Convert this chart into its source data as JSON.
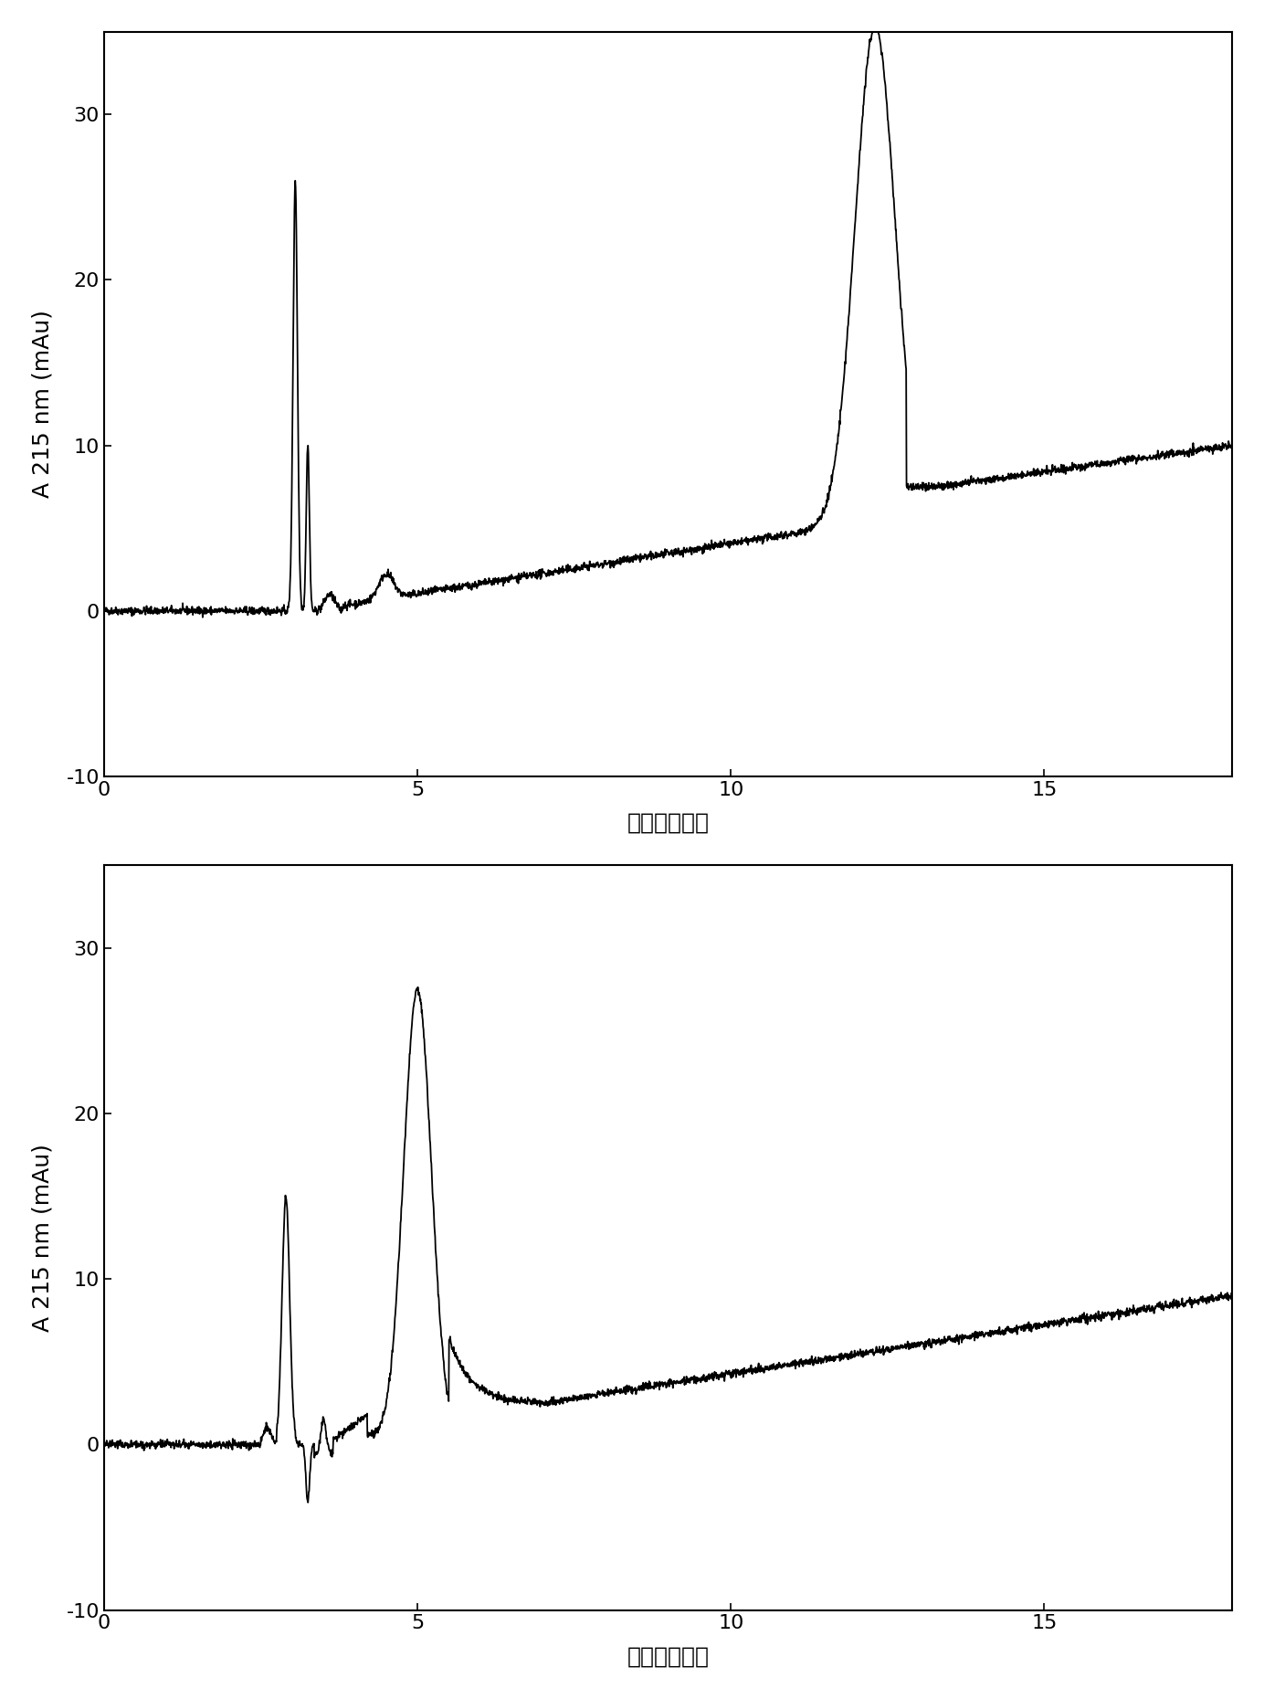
{
  "plot1": {
    "xlim": [
      0,
      18
    ],
    "ylim": [
      -10,
      35
    ],
    "yticks": [
      -10,
      0,
      10,
      20,
      30
    ],
    "xticks": [
      0,
      5,
      10,
      15
    ],
    "xlabel": "时间（分钟）",
    "ylabel": "A 215 nm (mAu)"
  },
  "plot2": {
    "xlim": [
      0,
      18
    ],
    "ylim": [
      -10,
      35
    ],
    "yticks": [
      -10,
      0,
      10,
      20,
      30
    ],
    "xticks": [
      0,
      5,
      10,
      15
    ],
    "xlabel": "时间（分钟）",
    "ylabel": "A 215 nm (mAu)"
  },
  "line_color": "#000000",
  "background_color": "#ffffff",
  "tick_fontsize": 16,
  "label_fontsize": 18
}
